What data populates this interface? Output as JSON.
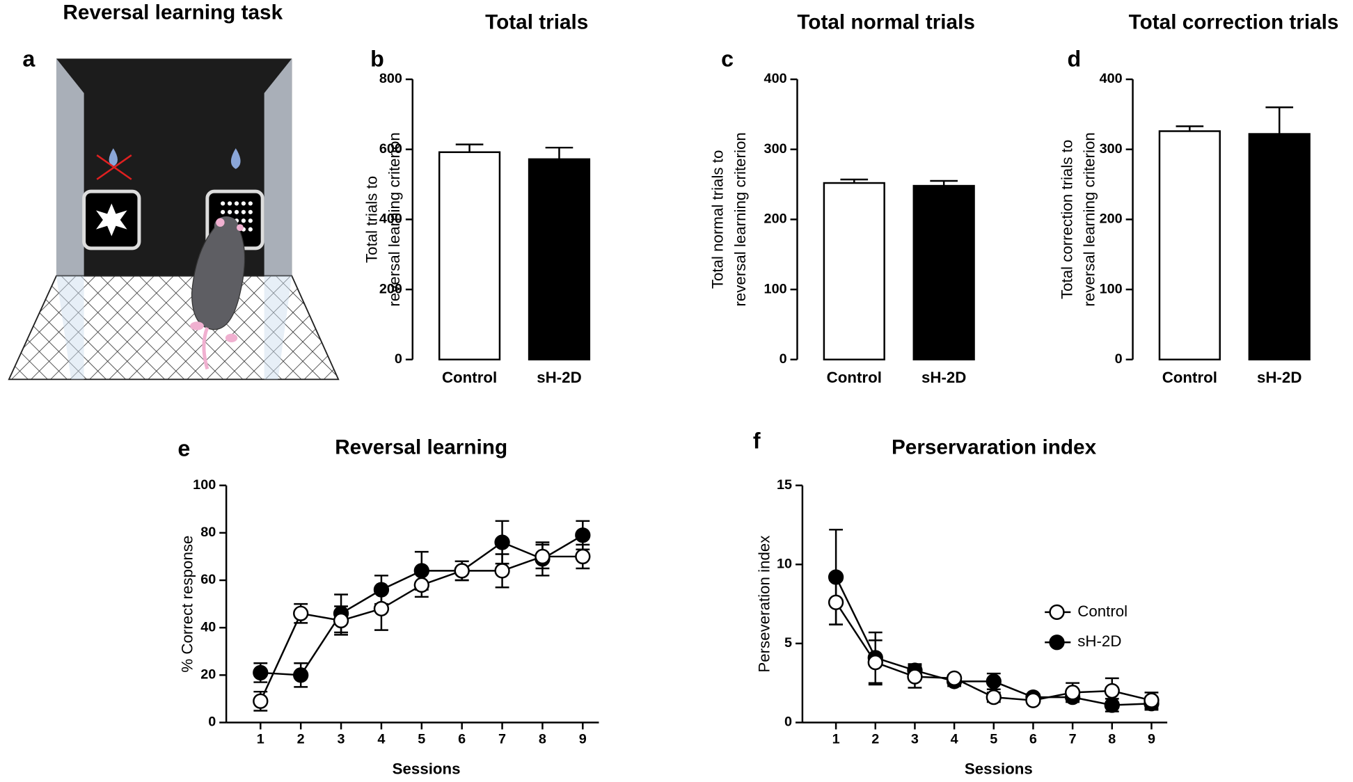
{
  "panel_a": {
    "label": "a",
    "title": "Reversal learning task"
  },
  "chart_data": [
    {
      "type": "bar",
      "panel_label": "b",
      "title": "Total trials",
      "ylabel": [
        "Total trials to",
        "reversal learning criterion"
      ],
      "categories": [
        "Control",
        "sH-2D"
      ],
      "values": [
        592,
        572
      ],
      "errors": [
        22,
        33
      ],
      "colors": [
        "#ffffff",
        "#000000"
      ],
      "ylim": [
        0,
        800
      ],
      "yticks": [
        0,
        200,
        400,
        600,
        800
      ]
    },
    {
      "type": "bar",
      "panel_label": "c",
      "title": "Total normal trials",
      "ylabel": [
        "Total normal trials to",
        "reversal learning criterion"
      ],
      "categories": [
        "Control",
        "sH-2D"
      ],
      "values": [
        252,
        248
      ],
      "errors": [
        5,
        7
      ],
      "colors": [
        "#ffffff",
        "#000000"
      ],
      "ylim": [
        0,
        400
      ],
      "yticks": [
        0,
        100,
        200,
        300,
        400
      ]
    },
    {
      "type": "bar",
      "panel_label": "d",
      "title": "Total correction trials",
      "ylabel": [
        "Total correction trials to",
        "reversal learning criterion"
      ],
      "categories": [
        "Control",
        "sH-2D"
      ],
      "values": [
        326,
        322
      ],
      "errors": [
        7,
        38
      ],
      "colors": [
        "#ffffff",
        "#000000"
      ],
      "ylim": [
        0,
        400
      ],
      "yticks": [
        0,
        100,
        200,
        300,
        400
      ]
    },
    {
      "type": "line",
      "panel_label": "e",
      "title": "Reversal learning",
      "xlabel": "Sessions",
      "ylabel": [
        "% Correct response"
      ],
      "x": [
        1,
        2,
        3,
        4,
        5,
        6,
        7,
        8,
        9
      ],
      "xlim": [
        0.15,
        9.4
      ],
      "xticks": [
        1,
        2,
        3,
        4,
        5,
        6,
        7,
        8,
        9
      ],
      "ylim": [
        0,
        100
      ],
      "yticks": [
        0,
        20,
        40,
        60,
        80,
        100
      ],
      "series": [
        {
          "color": "#000000",
          "values": [
            21,
            20,
            46,
            56,
            64,
            64,
            76,
            69,
            79
          ],
          "errors": [
            4,
            5,
            8,
            6,
            8,
            4,
            9,
            7,
            6
          ]
        },
        {
          "color": "#ffffff",
          "values": [
            9,
            46,
            43,
            48,
            58,
            64,
            64,
            70,
            70
          ],
          "errors": [
            4,
            4,
            6,
            9,
            5,
            4,
            7,
            5,
            5
          ]
        }
      ]
    },
    {
      "type": "line",
      "panel_label": "f",
      "title": "Perservaration index",
      "xlabel": "Sessions",
      "ylabel": [
        "Perseveration index"
      ],
      "x": [
        1,
        2,
        3,
        4,
        5,
        6,
        7,
        8,
        9
      ],
      "xlim": [
        0.15,
        9.4
      ],
      "xticks": [
        1,
        2,
        3,
        4,
        5,
        6,
        7,
        8,
        9
      ],
      "ylim": [
        0,
        15
      ],
      "yticks": [
        0,
        5,
        10,
        15
      ],
      "legend": "right",
      "series": [
        {
          "name": "sH-2D",
          "color": "#000000",
          "values": [
            9.2,
            4.1,
            3.3,
            2.6,
            2.6,
            1.6,
            1.6,
            1.1,
            1.2
          ],
          "errors": [
            3.0,
            1.6,
            0.4,
            0.3,
            0.5,
            0.2,
            0.3,
            0.4,
            0.4
          ]
        },
        {
          "name": "Control",
          "color": "#ffffff",
          "values": [
            7.6,
            3.8,
            2.9,
            2.8,
            1.6,
            1.4,
            1.9,
            2.0,
            1.4
          ],
          "errors": [
            1.4,
            1.4,
            0.7,
            0.2,
            0.3,
            0.2,
            0.6,
            0.8,
            0.5
          ]
        }
      ]
    }
  ]
}
